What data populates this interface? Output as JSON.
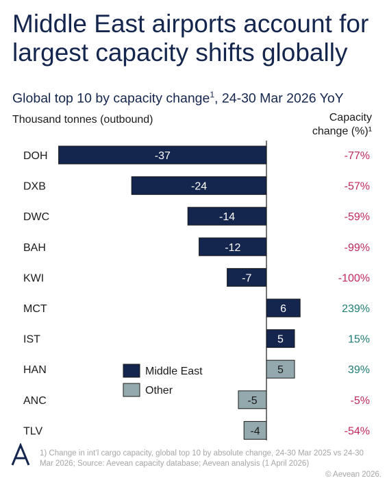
{
  "headline": "Middle East airports account for largest capacity shifts globally",
  "subtitle_main": "Global top 10 by capacity change",
  "subtitle_sup": "1",
  "subtitle_tail": ", 24-30 Mar 2026 YoY",
  "unit_label": "Thousand tonnes (outbound)",
  "pct_header_line1": "Capacity",
  "pct_header_line2": "change (%)¹",
  "footnote": "1) Change in int’l cargo capacity, global top 10 by absolute change, 24-30 Mar 2025 vs 24-30 Mar 2026; Source: Aevean capacity database; Aevean analysis (1 April 2026)",
  "copyright": "© Aevean 2026.",
  "logo_icon": "aevean-logo-icon",
  "colors": {
    "middle_east": "#14264e",
    "other": "#93a9ae",
    "negative_pct": "#c0285a",
    "positive_pct": "#1f7d74",
    "bar_label_light": "#ffffff",
    "bar_label_dark": "#1a1a1a"
  },
  "chart_data": {
    "type": "bar",
    "orientation": "horizontal",
    "categories": [
      "DOH",
      "DXB",
      "DWC",
      "BAH",
      "KWI",
      "MCT",
      "IST",
      "HAN",
      "ANC",
      "TLV"
    ],
    "values": [
      -37,
      -24,
      -14,
      -12,
      -7,
      6,
      5,
      5,
      -5,
      -4
    ],
    "group": [
      "Middle East",
      "Middle East",
      "Middle East",
      "Middle East",
      "Middle East",
      "Middle East",
      "Middle East",
      "Other",
      "Other",
      "Other"
    ],
    "pct_change": [
      "-77%",
      "-57%",
      "-59%",
      "-99%",
      "-100%",
      "239%",
      "15%",
      "39%",
      "-5%",
      "-54%"
    ],
    "legend": [
      {
        "name": "Middle East",
        "color": "#14264e"
      },
      {
        "name": "Other",
        "color": "#93a9ae"
      }
    ],
    "xlim": [
      -37,
      6
    ],
    "legend_placement": "center-left",
    "grid": false
  }
}
